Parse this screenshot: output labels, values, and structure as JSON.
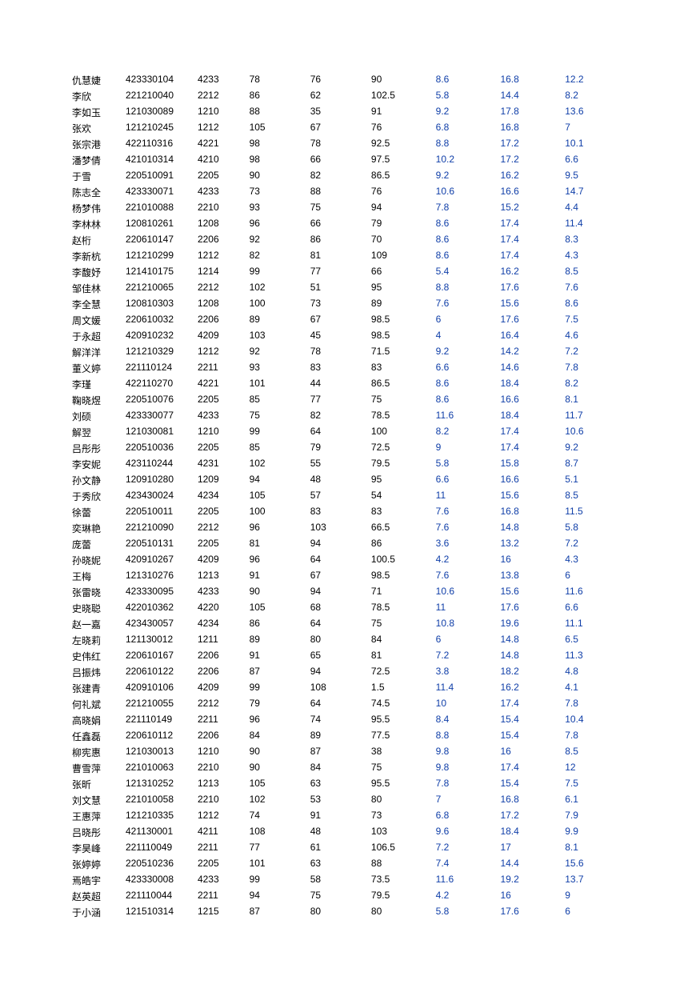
{
  "text_color": "#000000",
  "blue_color": "#0f3ea8",
  "background_color": "#ffffff",
  "font_size": 12,
  "rows": [
    [
      "仇慧婕",
      "423330104",
      "4233",
      "78",
      "76",
      "90",
      "8.6",
      "16.8",
      "12.2"
    ],
    [
      "李欣",
      "221210040",
      "2212",
      "86",
      "62",
      "102.5",
      "5.8",
      "14.4",
      "8.2"
    ],
    [
      "李如玉",
      "121030089",
      "1210",
      "88",
      "35",
      "91",
      "9.2",
      "17.8",
      "13.6"
    ],
    [
      "张欢",
      "121210245",
      "1212",
      "105",
      "67",
      "76",
      "6.8",
      "16.8",
      "7"
    ],
    [
      "张宗港",
      "422110316",
      "4221",
      "98",
      "78",
      "92.5",
      "8.8",
      "17.2",
      "10.1"
    ],
    [
      "潘梦倩",
      "421010314",
      "4210",
      "98",
      "66",
      "97.5",
      "10.2",
      "17.2",
      "6.6"
    ],
    [
      "于雪",
      "220510091",
      "2205",
      "90",
      "82",
      "86.5",
      "9.2",
      "16.2",
      "9.5"
    ],
    [
      "陈志全",
      "423330071",
      "4233",
      "73",
      "88",
      "76",
      "10.6",
      "16.6",
      "14.7"
    ],
    [
      "杨梦伟",
      "221010088",
      "2210",
      "93",
      "75",
      "94",
      "7.8",
      "15.2",
      "4.4"
    ],
    [
      "李林林",
      "120810261",
      "1208",
      "96",
      "66",
      "79",
      "8.6",
      "17.4",
      "11.4"
    ],
    [
      "赵桁",
      "220610147",
      "2206",
      "92",
      "86",
      "70",
      "8.6",
      "17.4",
      "8.3"
    ],
    [
      "李新杭",
      "121210299",
      "1212",
      "82",
      "81",
      "109",
      "8.6",
      "17.4",
      "4.3"
    ],
    [
      "李馥妤",
      "121410175",
      "1214",
      "99",
      "77",
      "66",
      "5.4",
      "16.2",
      "8.5"
    ],
    [
      "邹佳林",
      "221210065",
      "2212",
      "102",
      "51",
      "95",
      "8.8",
      "17.6",
      "7.6"
    ],
    [
      "李全慧",
      "120810303",
      "1208",
      "100",
      "73",
      "89",
      "7.6",
      "15.6",
      "8.6"
    ],
    [
      "周文媛",
      "220610032",
      "2206",
      "89",
      "67",
      "98.5",
      "6",
      "17.6",
      "7.5"
    ],
    [
      "于永超",
      "420910232",
      "4209",
      "103",
      "45",
      "98.5",
      "4",
      "16.4",
      "4.6"
    ],
    [
      "解洋洋",
      "121210329",
      "1212",
      "92",
      "78",
      "71.5",
      "9.2",
      "14.2",
      "7.2"
    ],
    [
      "董义婷",
      "221110124",
      "2211",
      "93",
      "83",
      "83",
      "6.6",
      "14.6",
      "7.8"
    ],
    [
      "李瑾",
      "422110270",
      "4221",
      "101",
      "44",
      "86.5",
      "8.6",
      "18.4",
      "8.2"
    ],
    [
      "鞠晓煜",
      "220510076",
      "2205",
      "85",
      "77",
      "75",
      "8.6",
      "16.6",
      "8.1"
    ],
    [
      "刘硕",
      "423330077",
      "4233",
      "75",
      "82",
      "78.5",
      "11.6",
      "18.4",
      "11.7"
    ],
    [
      "解翌",
      "121030081",
      "1210",
      "99",
      "64",
      "100",
      "8.2",
      "17.4",
      "10.6"
    ],
    [
      "吕彤彤",
      "220510036",
      "2205",
      "85",
      "79",
      "72.5",
      "9",
      "17.4",
      "9.2"
    ],
    [
      "李安妮",
      "423110244",
      "4231",
      "102",
      "55",
      "79.5",
      "5.8",
      "15.8",
      "8.7"
    ],
    [
      "孙文静",
      "120910280",
      "1209",
      "94",
      "48",
      "95",
      "6.6",
      "16.6",
      "5.1"
    ],
    [
      "于秀欣",
      "423430024",
      "4234",
      "105",
      "57",
      "54",
      "11",
      "15.6",
      "8.5"
    ],
    [
      "徐蕾",
      "220510011",
      "2205",
      "100",
      "83",
      "83",
      "7.6",
      "16.8",
      "11.5"
    ],
    [
      "奕琳艳",
      "221210090",
      "2212",
      "96",
      "103",
      "66.5",
      "7.6",
      "14.8",
      "5.8"
    ],
    [
      "庞蕾",
      "220510131",
      "2205",
      "81",
      "94",
      "86",
      "3.6",
      "13.2",
      "7.2"
    ],
    [
      "孙晓妮",
      "420910267",
      "4209",
      "96",
      "64",
      "100.5",
      "4.2",
      "16",
      "4.3"
    ],
    [
      "王梅",
      "121310276",
      "1213",
      "91",
      "67",
      "98.5",
      "7.6",
      "13.8",
      "6"
    ],
    [
      "张雷晓",
      "423330095",
      "4233",
      "90",
      "94",
      "71",
      "10.6",
      "15.6",
      "11.6"
    ],
    [
      "史晓聪",
      "422010362",
      "4220",
      "105",
      "68",
      "78.5",
      "11",
      "17.6",
      "6.6"
    ],
    [
      "赵一嘉",
      "423430057",
      "4234",
      "86",
      "64",
      "75",
      "10.8",
      "19.6",
      "11.1"
    ],
    [
      "左晓莉",
      "121130012",
      "1211",
      "89",
      "80",
      "84",
      "6",
      "14.8",
      "6.5"
    ],
    [
      "史伟红",
      "220610167",
      "2206",
      "91",
      "65",
      "81",
      "7.2",
      "14.8",
      "11.3"
    ],
    [
      "吕振炜",
      "220610122",
      "2206",
      "87",
      "94",
      "72.5",
      "3.8",
      "18.2",
      "4.8"
    ],
    [
      "张建青",
      "420910106",
      "4209",
      "99",
      "108",
      "1.5",
      "11.4",
      "16.2",
      "4.1"
    ],
    [
      "何礼斌",
      "221210055",
      "2212",
      "79",
      "64",
      "74.5",
      "10",
      "17.4",
      "7.8"
    ],
    [
      "高晓娟",
      "221110149",
      "2211",
      "96",
      "74",
      "95.5",
      "8.4",
      "15.4",
      "10.4"
    ],
    [
      "任鑫磊",
      "220610112",
      "2206",
      "84",
      "89",
      "77.5",
      "8.8",
      "15.4",
      "7.8"
    ],
    [
      "柳宪惠",
      "121030013",
      "1210",
      "90",
      "87",
      "38",
      "9.8",
      "16",
      "8.5"
    ],
    [
      "曹雪萍",
      "221010063",
      "2210",
      "90",
      "84",
      "75",
      "9.8",
      "17.4",
      "12"
    ],
    [
      "张昕",
      "121310252",
      "1213",
      "105",
      "63",
      "95.5",
      "7.8",
      "15.4",
      "7.5"
    ],
    [
      "刘文慧",
      "221010058",
      "2210",
      "102",
      "53",
      "80",
      "7",
      "16.8",
      "6.1"
    ],
    [
      "王惠萍",
      "121210335",
      "1212",
      "74",
      "91",
      "73",
      "6.8",
      "17.2",
      "7.9"
    ],
    [
      "吕晓彤",
      "421130001",
      "4211",
      "108",
      "48",
      "103",
      "9.6",
      "18.4",
      "9.9"
    ],
    [
      "李昊峰",
      "221110049",
      "2211",
      "77",
      "61",
      "106.5",
      "7.2",
      "17",
      "8.1"
    ],
    [
      "张婷婷",
      "220510236",
      "2205",
      "101",
      "63",
      "88",
      "7.4",
      "14.4",
      "15.6"
    ],
    [
      "焉皓宇",
      "423330008",
      "4233",
      "99",
      "58",
      "73.5",
      "11.6",
      "19.2",
      "13.7"
    ],
    [
      "赵英超",
      "221110044",
      "2211",
      "94",
      "75",
      "79.5",
      "4.2",
      "16",
      "9"
    ],
    [
      "于小涵",
      "121510314",
      "1215",
      "87",
      "80",
      "80",
      "5.8",
      "17.6",
      "6"
    ]
  ]
}
